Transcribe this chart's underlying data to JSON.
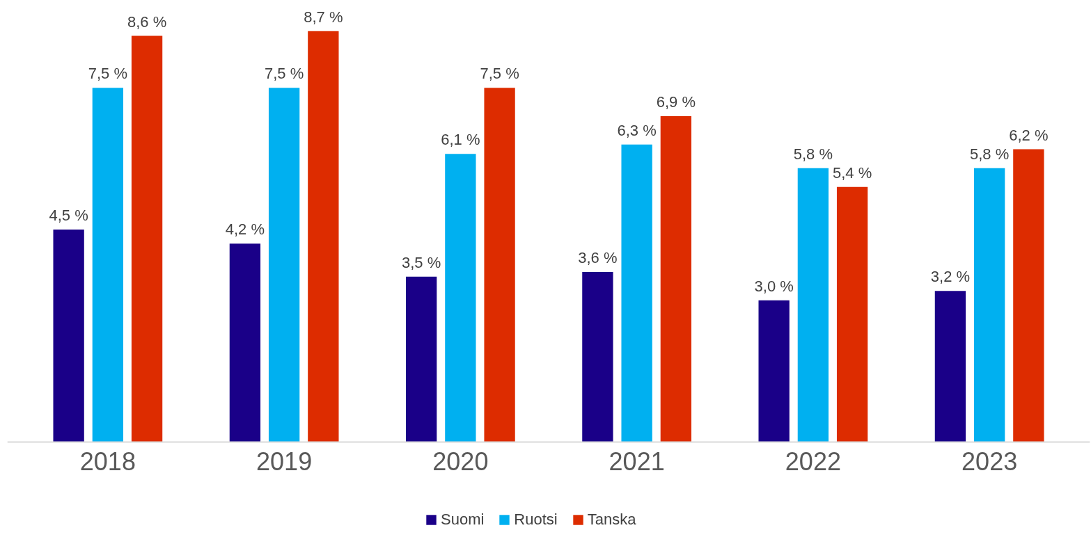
{
  "chart_data": {
    "type": "bar",
    "categories": [
      "2018",
      "2019",
      "2020",
      "2021",
      "2022",
      "2023"
    ],
    "series": [
      {
        "name": "Suomi",
        "color": "#1a0088",
        "values": [
          4.5,
          4.2,
          3.5,
          3.6,
          3.0,
          3.2
        ],
        "value_labels": [
          "4,5 %",
          "4,2 %",
          "3,5 %",
          "3,6 %",
          "3,0 %",
          "3,2 %"
        ]
      },
      {
        "name": "Ruotsi",
        "color": "#00b0f0",
        "values": [
          7.5,
          7.5,
          6.1,
          6.3,
          5.8,
          5.8
        ],
        "value_labels": [
          "7,5 %",
          "7,5 %",
          "6,1 %",
          "6,3 %",
          "5,8 %",
          "5,8 %"
        ]
      },
      {
        "name": "Tanska",
        "color": "#dd2c00",
        "values": [
          8.6,
          8.7,
          7.5,
          6.9,
          5.4,
          6.2
        ],
        "value_labels": [
          "8,6 %",
          "8,7 %",
          "7,5 %",
          "6,9 %",
          "5,4 %",
          "6,2 %"
        ]
      }
    ],
    "grid": false,
    "legend": "bottom"
  }
}
